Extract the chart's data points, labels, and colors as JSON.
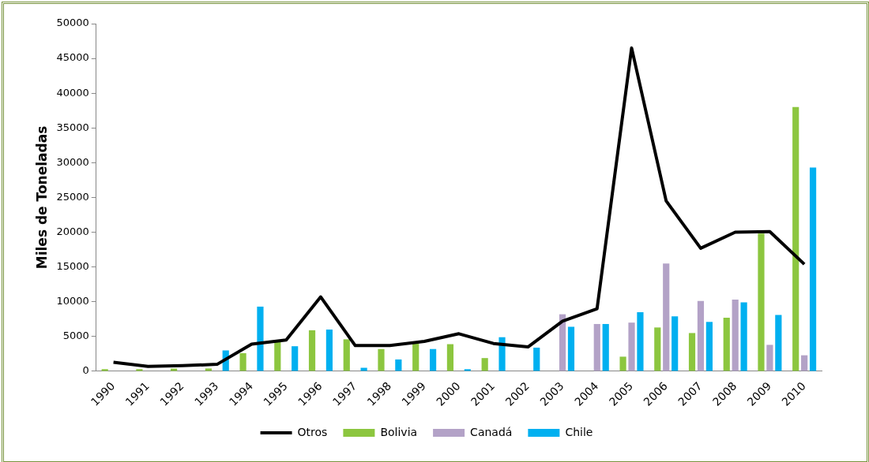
{
  "chart_data": {
    "type": "bar",
    "ylabel": "Miles de Toneladas",
    "categories": [
      "1990",
      "1991",
      "1992",
      "1993",
      "1994",
      "1995",
      "1996",
      "1997",
      "1998",
      "1999",
      "2000",
      "2001",
      "2002",
      "2003",
      "2004",
      "2005",
      "2006",
      "2007",
      "2008",
      "2009",
      "2010"
    ],
    "series": [
      {
        "name": "Bolivia",
        "color": "#8cc63f",
        "values": [
          300,
          300,
          400,
          400,
          2600,
          4300,
          5900,
          4600,
          3200,
          4000,
          3900,
          1900,
          null,
          null,
          null,
          2100,
          6300,
          5500,
          7700,
          19800,
          38000
        ]
      },
      {
        "name": "Canadá",
        "color": "#b3a2c7",
        "values": [
          null,
          null,
          null,
          null,
          null,
          null,
          null,
          null,
          null,
          null,
          null,
          null,
          null,
          8200,
          6800,
          7000,
          15500,
          10100,
          10300,
          3800,
          2300
        ]
      },
      {
        "name": "Chile",
        "color": "#00b0f0",
        "values": [
          null,
          null,
          null,
          3000,
          9300,
          3600,
          6000,
          500,
          1700,
          3200,
          300,
          4900,
          3400,
          6400,
          6800,
          8500,
          7900,
          7100,
          9900,
          8100,
          29300
        ]
      },
      {
        "name": "Otros",
        "type": "line",
        "color": "#000000",
        "values": [
          1300,
          700,
          800,
          1000,
          3900,
          4500,
          10700,
          3700,
          3700,
          4300,
          5400,
          4000,
          3500,
          7200,
          9000,
          46500,
          24500,
          17700,
          20000,
          20100,
          15400
        ]
      }
    ],
    "ylim": [
      0,
      50000
    ],
    "yticks": [
      0,
      5000,
      10000,
      15000,
      20000,
      25000,
      30000,
      35000,
      40000,
      45000,
      50000
    ],
    "grid": false,
    "legend": "bottom",
    "marker": "none"
  }
}
